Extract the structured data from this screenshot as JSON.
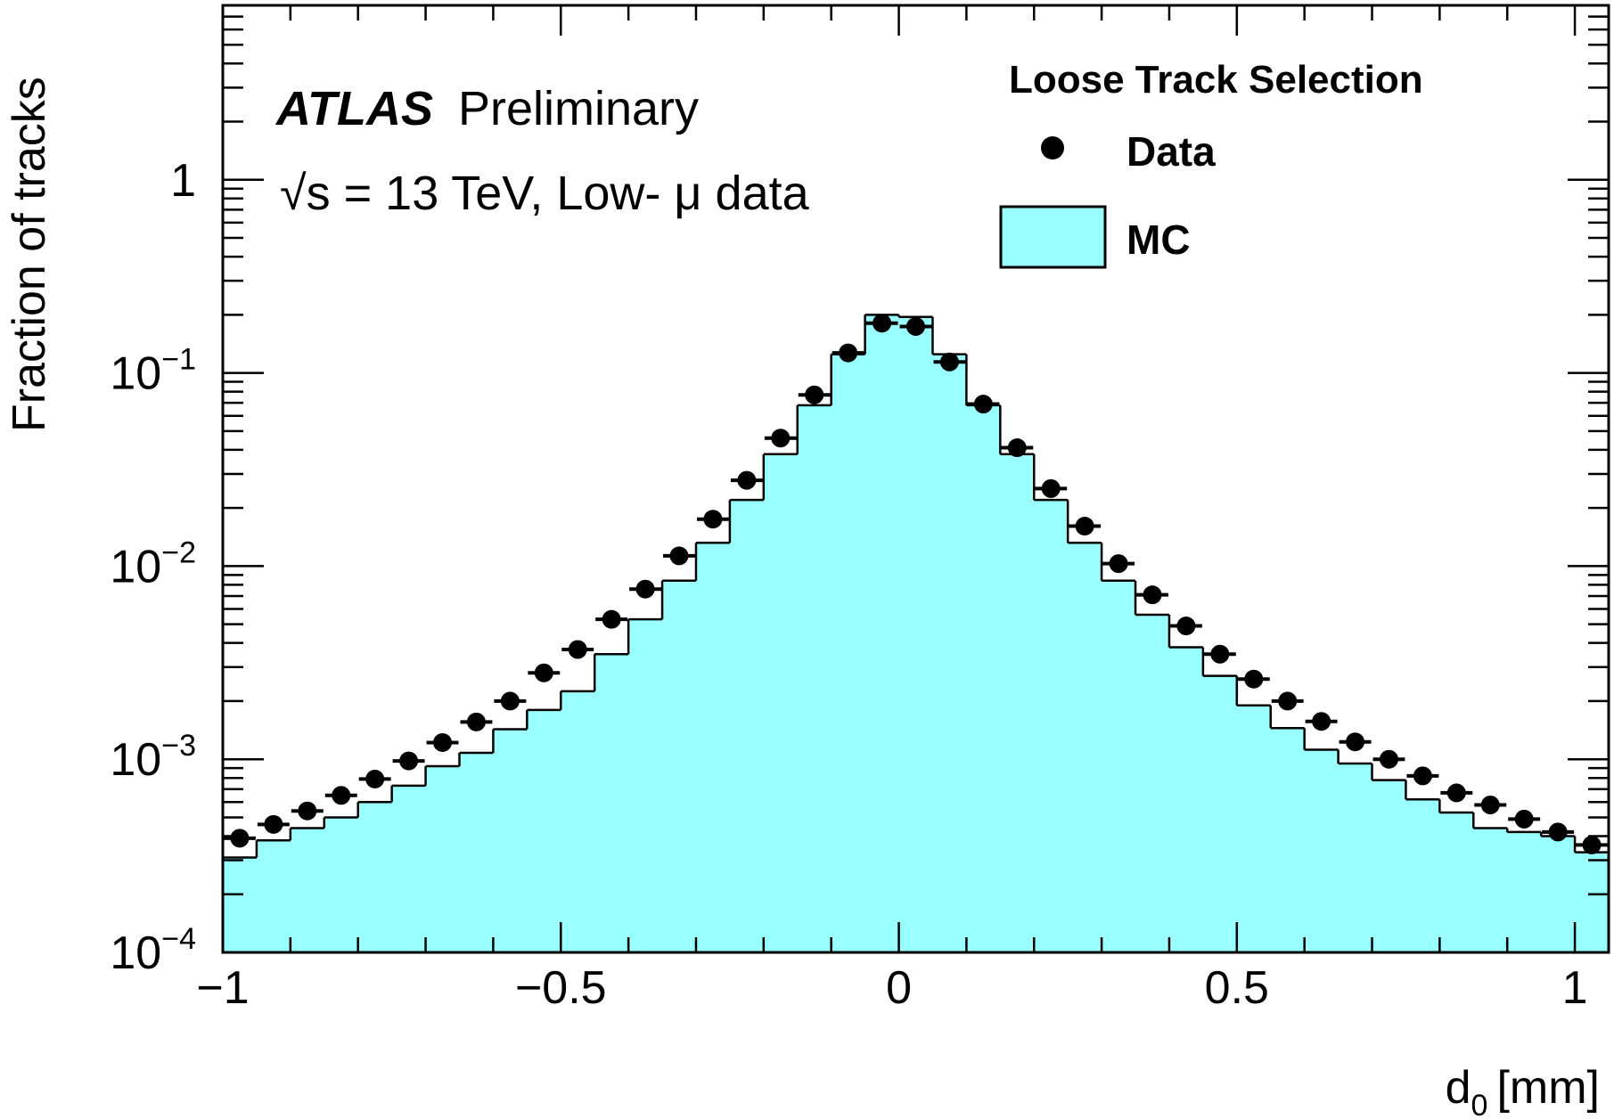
{
  "chart_data": {
    "type": "histogram",
    "yscale": "log",
    "xlabel": "d",
    "xlabel_sub": "0",
    "xlabel_unit": "[mm]",
    "ylabel": "Fraction of tracks",
    "xlim": [
      -1.0,
      1.05
    ],
    "ylim": [
      0.0001,
      8
    ],
    "grid": false,
    "x_ticks": [
      -1,
      -0.5,
      0,
      0.5,
      1
    ],
    "x_tick_labels": [
      "−1",
      "−0.5",
      "0",
      "0.5",
      "1"
    ],
    "y_ticks": [
      {
        "value": 0.0001,
        "base": "10",
        "exp": "−4"
      },
      {
        "value": 0.001,
        "base": "10",
        "exp": "−3"
      },
      {
        "value": 0.01,
        "base": "10",
        "exp": "−2"
      },
      {
        "value": 0.1,
        "base": "10",
        "exp": "−1"
      },
      {
        "value": 1,
        "base": "1",
        "exp": ""
      }
    ],
    "annotation": {
      "experiment": "ATLAS",
      "status": "Preliminary",
      "energy_root": "√",
      "energy_text": "s = 13 TeV, Low- μ data"
    },
    "legend": {
      "title": "Loose Track Selection",
      "placement": "top-right",
      "entries": [
        {
          "label": "Data",
          "style": "marker"
        },
        {
          "label": "MC",
          "style": "filled-box"
        }
      ]
    },
    "colors": {
      "mc_fill": "#99ffff",
      "mc_line": "#000000",
      "data_marker": "#000000"
    },
    "bin_edges": [
      -1.0,
      -0.95,
      -0.9,
      -0.85,
      -0.8,
      -0.75,
      -0.7,
      -0.65,
      -0.6,
      -0.55,
      -0.5,
      -0.45,
      -0.4,
      -0.35,
      -0.3,
      -0.25,
      -0.2,
      -0.15,
      -0.1,
      -0.05,
      0.0,
      0.05,
      0.1,
      0.15,
      0.2,
      0.25,
      0.3,
      0.35,
      0.4,
      0.45,
      0.5,
      0.55,
      0.6,
      0.65,
      0.7,
      0.75,
      0.8,
      0.85,
      0.9,
      0.95,
      1.0,
      1.05
    ],
    "series": [
      {
        "name": "MC",
        "style": "filled-step",
        "values": [
          0.00031,
          0.00038,
          0.00044,
          0.0005,
          0.0006,
          0.00073,
          0.00092,
          0.00108,
          0.00143,
          0.0018,
          0.00225,
          0.0035,
          0.0053,
          0.0084,
          0.0132,
          0.022,
          0.038,
          0.068,
          0.125,
          0.2,
          0.195,
          0.125,
          0.068,
          0.038,
          0.022,
          0.0132,
          0.0084,
          0.0056,
          0.0038,
          0.0027,
          0.0019,
          0.00145,
          0.00112,
          0.00095,
          0.00078,
          0.00062,
          0.00053,
          0.00044,
          0.00042,
          0.0004,
          0.00033
        ]
      },
      {
        "name": "Data",
        "style": "points",
        "values": [
          0.00039,
          0.00046,
          0.00054,
          0.00065,
          0.00079,
          0.00098,
          0.00122,
          0.00156,
          0.002,
          0.0028,
          0.0037,
          0.0053,
          0.0076,
          0.0113,
          0.0175,
          0.0278,
          0.046,
          0.077,
          0.127,
          0.181,
          0.174,
          0.114,
          0.069,
          0.041,
          0.0252,
          0.0161,
          0.0103,
          0.0071,
          0.0049,
          0.0035,
          0.0026,
          0.002,
          0.00157,
          0.00123,
          0.001,
          0.00082,
          0.00067,
          0.00058,
          0.00049,
          0.00042,
          0.00036
        ]
      }
    ]
  }
}
